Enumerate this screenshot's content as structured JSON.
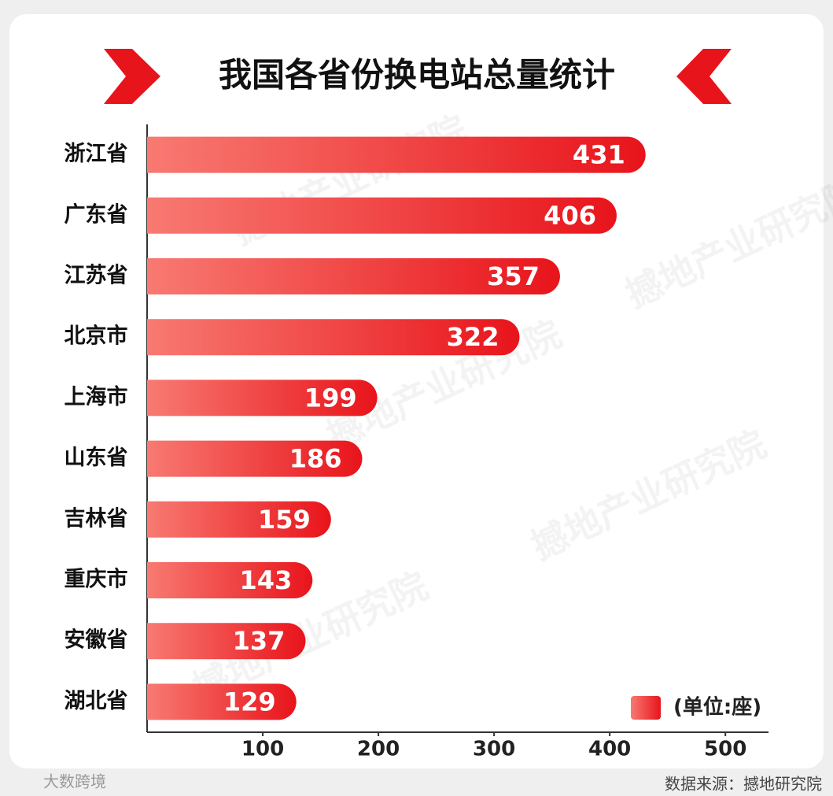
{
  "chart_data": {
    "type": "bar",
    "orientation": "horizontal",
    "title": "我国各省份换电站总量统计",
    "categories": [
      "浙江省",
      "广东省",
      "江苏省",
      "北京市",
      "上海市",
      "山东省",
      "吉林省",
      "重庆市",
      "安徽省",
      "湖北省"
    ],
    "values": [
      431,
      406,
      357,
      322,
      199,
      186,
      159,
      143,
      137,
      129
    ],
    "color": "#e8141b",
    "xlim": [
      0,
      540
    ],
    "xticks": [
      100,
      200,
      300,
      400,
      500
    ],
    "legend_label": "(单位:座)",
    "source": "数据来源：撼地研究院",
    "watermark": "撼地产业研究院",
    "corner_logo": "大数跨境"
  }
}
